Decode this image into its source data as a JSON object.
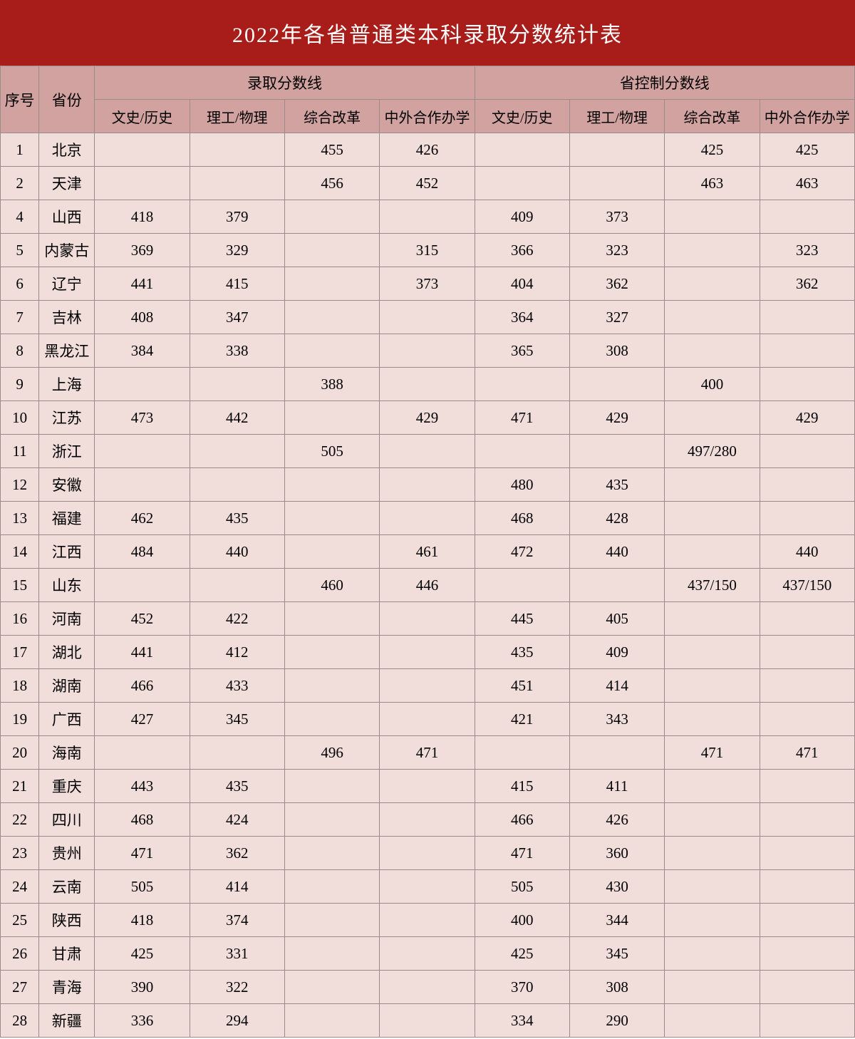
{
  "title": "2022年各省普通类本科录取分数统计表",
  "headers": {
    "seq": "序号",
    "province": "省份",
    "group1": "录取分数线",
    "group2": "省控制分数线",
    "sub": [
      "文史/历史",
      "理工/物理",
      "综合改革",
      "中外合作办学",
      "文史/历史",
      "理工/物理",
      "综合改革",
      "中外合作办学"
    ]
  },
  "rows": [
    {
      "seq": "1",
      "prov": "北京",
      "c": [
        "",
        "",
        "455",
        "426",
        "",
        "",
        "425",
        "425"
      ]
    },
    {
      "seq": "2",
      "prov": "天津",
      "c": [
        "",
        "",
        "456",
        "452",
        "",
        "",
        "463",
        "463"
      ]
    },
    {
      "seq": "4",
      "prov": "山西",
      "c": [
        "418",
        "379",
        "",
        "",
        "409",
        "373",
        "",
        ""
      ]
    },
    {
      "seq": "5",
      "prov": "内蒙古",
      "c": [
        "369",
        "329",
        "",
        "315",
        "366",
        "323",
        "",
        "323"
      ]
    },
    {
      "seq": "6",
      "prov": "辽宁",
      "c": [
        "441",
        "415",
        "",
        "373",
        "404",
        "362",
        "",
        "362"
      ]
    },
    {
      "seq": "7",
      "prov": "吉林",
      "c": [
        "408",
        "347",
        "",
        "",
        "364",
        "327",
        "",
        ""
      ]
    },
    {
      "seq": "8",
      "prov": "黑龙江",
      "c": [
        "384",
        "338",
        "",
        "",
        "365",
        "308",
        "",
        ""
      ]
    },
    {
      "seq": "9",
      "prov": "上海",
      "c": [
        "",
        "",
        "388",
        "",
        "",
        "",
        "400",
        ""
      ]
    },
    {
      "seq": "10",
      "prov": "江苏",
      "c": [
        "473",
        "442",
        "",
        "429",
        "471",
        "429",
        "",
        "429"
      ]
    },
    {
      "seq": "11",
      "prov": "浙江",
      "c": [
        "",
        "",
        "505",
        "",
        "",
        "",
        "497/280",
        ""
      ]
    },
    {
      "seq": "12",
      "prov": "安徽",
      "c": [
        "",
        "",
        "",
        "",
        "480",
        "435",
        "",
        ""
      ]
    },
    {
      "seq": "13",
      "prov": "福建",
      "c": [
        "462",
        "435",
        "",
        "",
        "468",
        "428",
        "",
        ""
      ]
    },
    {
      "seq": "14",
      "prov": "江西",
      "c": [
        "484",
        "440",
        "",
        "461",
        "472",
        "440",
        "",
        "440"
      ]
    },
    {
      "seq": "15",
      "prov": "山东",
      "c": [
        "",
        "",
        "460",
        "446",
        "",
        "",
        "437/150",
        "437/150"
      ]
    },
    {
      "seq": "16",
      "prov": "河南",
      "c": [
        "452",
        "422",
        "",
        "",
        "445",
        "405",
        "",
        ""
      ]
    },
    {
      "seq": "17",
      "prov": "湖北",
      "c": [
        "441",
        "412",
        "",
        "",
        "435",
        "409",
        "",
        ""
      ]
    },
    {
      "seq": "18",
      "prov": "湖南",
      "c": [
        "466",
        "433",
        "",
        "",
        "451",
        "414",
        "",
        ""
      ]
    },
    {
      "seq": "19",
      "prov": "广西",
      "c": [
        "427",
        "345",
        "",
        "",
        "421",
        "343",
        "",
        ""
      ]
    },
    {
      "seq": "20",
      "prov": "海南",
      "c": [
        "",
        "",
        "496",
        "471",
        "",
        "",
        "471",
        "471"
      ]
    },
    {
      "seq": "21",
      "prov": "重庆",
      "c": [
        "443",
        "435",
        "",
        "",
        "415",
        "411",
        "",
        ""
      ]
    },
    {
      "seq": "22",
      "prov": "四川",
      "c": [
        "468",
        "424",
        "",
        "",
        "466",
        "426",
        "",
        ""
      ]
    },
    {
      "seq": "23",
      "prov": "贵州",
      "c": [
        "471",
        "362",
        "",
        "",
        "471",
        "360",
        "",
        ""
      ]
    },
    {
      "seq": "24",
      "prov": "云南",
      "c": [
        "505",
        "414",
        "",
        "",
        "505",
        "430",
        "",
        ""
      ]
    },
    {
      "seq": "25",
      "prov": "陕西",
      "c": [
        "418",
        "374",
        "",
        "",
        "400",
        "344",
        "",
        ""
      ]
    },
    {
      "seq": "26",
      "prov": "甘肃",
      "c": [
        "425",
        "331",
        "",
        "",
        "425",
        "345",
        "",
        ""
      ]
    },
    {
      "seq": "27",
      "prov": "青海",
      "c": [
        "390",
        "322",
        "",
        "",
        "370",
        "308",
        "",
        ""
      ]
    },
    {
      "seq": "28",
      "prov": "新疆",
      "c": [
        "336",
        "294",
        "",
        "",
        "334",
        "290",
        "",
        ""
      ]
    }
  ]
}
